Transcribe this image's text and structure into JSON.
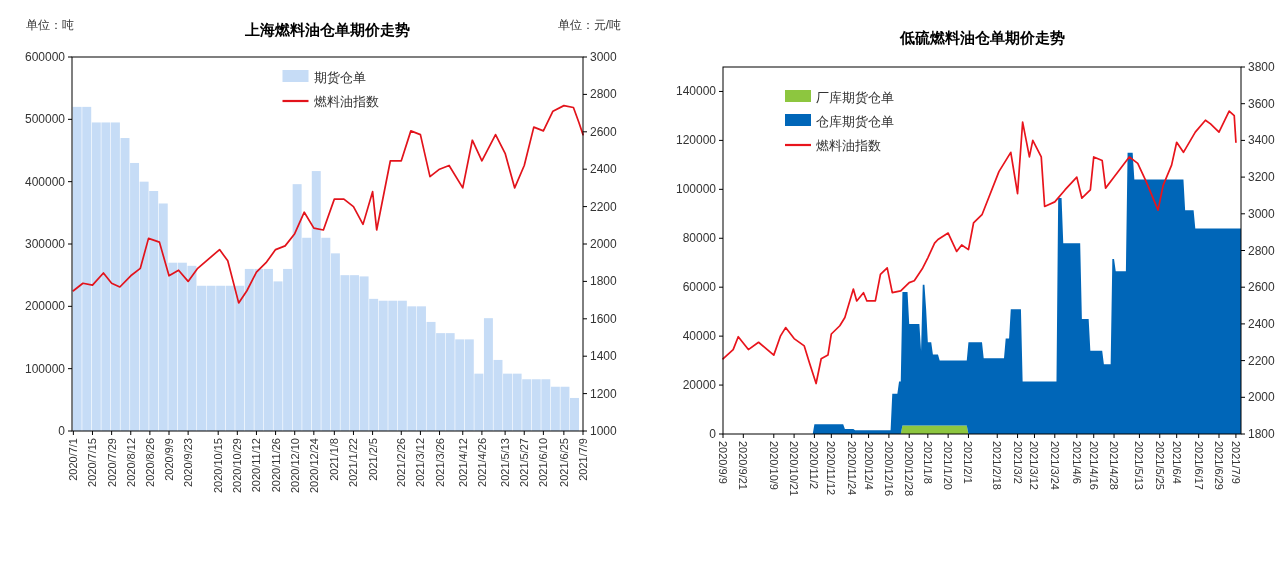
{
  "chart_data": [
    {
      "type": "bar",
      "title": "上海燃料油仓单期价走势",
      "ylabel": "单位：吨",
      "y2label": "单位：元/吨",
      "legend": "top",
      "xlim": [
        "2020-06-30",
        "2021-07-09"
      ],
      "xticks": [
        {
          "value": "2020-07-01",
          "label": "2020/7/1"
        },
        {
          "value": "2020-07-15",
          "label": "2020/7/15"
        },
        {
          "value": "2020-07-29",
          "label": "2020/7/29"
        },
        {
          "value": "2020-08-12",
          "label": "2020/8/12"
        },
        {
          "value": "2020-08-26",
          "label": "2020/8/26"
        },
        {
          "value": "2020-09-09",
          "label": "2020/9/9"
        },
        {
          "value": "2020-09-23",
          "label": "2020/9/23"
        },
        {
          "value": "2020-10-15",
          "label": "2020/10/15"
        },
        {
          "value": "2020-10-29",
          "label": "2020/10/29"
        },
        {
          "value": "2020-11-12",
          "label": "2020/11/12"
        },
        {
          "value": "2020-11-26",
          "label": "2020/11/26"
        },
        {
          "value": "2020-12-10",
          "label": "2020/12/10"
        },
        {
          "value": "2020-12-24",
          "label": "2020/12/24"
        },
        {
          "value": "2021-01-08",
          "label": "2021/1/8"
        },
        {
          "value": "2021-01-22",
          "label": "2021/1/22"
        },
        {
          "value": "2021-02-05",
          "label": "2021/2/5"
        },
        {
          "value": "2021-02-26",
          "label": "2021/2/26"
        },
        {
          "value": "2021-03-12",
          "label": "2021/3/12"
        },
        {
          "value": "2021-03-26",
          "label": "2021/3/26"
        },
        {
          "value": "2021-04-12",
          "label": "2021/4/12"
        },
        {
          "value": "2021-04-26",
          "label": "2021/4/26"
        },
        {
          "value": "2021-05-13",
          "label": "2021/5/13"
        },
        {
          "value": "2021-05-27",
          "label": "2021/5/27"
        },
        {
          "value": "2021-06-10",
          "label": "2021/6/10"
        },
        {
          "value": "2021-06-25",
          "label": "2021/6/25"
        },
        {
          "value": "2021-07-09",
          "label": "2021/7/9"
        }
      ],
      "ylim": [
        0,
        600000
      ],
      "yticks": [
        0,
        100000,
        200000,
        300000,
        400000,
        500000,
        600000
      ],
      "y2lim": [
        1000,
        3000
      ],
      "y2ticks": [
        1000,
        1200,
        1400,
        1600,
        1800,
        2000,
        2200,
        2400,
        2600,
        2800,
        3000
      ],
      "series": [
        {
          "name": "期货仓单",
          "color": "#c6dcf6",
          "x": [
            "2020-07-04",
            "2020-07-11",
            "2020-07-18",
            "2020-07-25",
            "2020-08-01",
            "2020-08-08",
            "2020-08-15",
            "2020-08-22",
            "2020-08-29",
            "2020-09-05",
            "2020-09-12",
            "2020-09-19",
            "2020-09-26",
            "2020-10-03",
            "2020-10-10",
            "2020-10-17",
            "2020-10-24",
            "2020-10-31",
            "2020-11-07",
            "2020-11-14",
            "2020-11-21",
            "2020-11-28",
            "2020-12-05",
            "2020-12-12",
            "2020-12-19",
            "2020-12-26",
            "2021-01-02",
            "2021-01-09",
            "2021-01-16",
            "2021-01-23",
            "2021-01-30",
            "2021-02-06",
            "2021-02-13",
            "2021-02-20",
            "2021-02-27",
            "2021-03-06",
            "2021-03-13",
            "2021-03-20",
            "2021-03-27",
            "2021-04-03",
            "2021-04-10",
            "2021-04-17",
            "2021-04-24",
            "2021-05-01",
            "2021-05-08",
            "2021-05-15",
            "2021-05-22",
            "2021-05-29",
            "2021-06-05",
            "2021-06-12",
            "2021-06-19",
            "2021-06-26",
            "2021-07-03"
          ],
          "values": [
            520000,
            520000,
            495000,
            495000,
            495000,
            470000,
            430000,
            400000,
            385000,
            365000,
            270000,
            270000,
            265000,
            233000,
            233000,
            233000,
            233000,
            233000,
            260000,
            260000,
            260000,
            240000,
            260000,
            396000,
            310000,
            417000,
            310000,
            285000,
            250000,
            250000,
            248000,
            212000,
            209000,
            209000,
            209000,
            200000,
            200000,
            175000,
            157000,
            157000,
            147000,
            147000,
            92000,
            181000,
            114000,
            92000,
            92000,
            83000,
            83000,
            83000,
            71000,
            71000,
            53000
          ]
        },
        {
          "name": "燃料油指数",
          "type": "line",
          "axis": "y2",
          "color": "#e2131b",
          "x": [
            "2020-07-01",
            "2020-07-08",
            "2020-07-15",
            "2020-07-23",
            "2020-07-29",
            "2020-08-04",
            "2020-08-12",
            "2020-08-19",
            "2020-08-25",
            "2020-09-02",
            "2020-09-09",
            "2020-09-16",
            "2020-09-23",
            "2020-09-30",
            "2020-10-16",
            "2020-10-22",
            "2020-10-30",
            "2020-11-05",
            "2020-11-12",
            "2020-11-19",
            "2020-11-26",
            "2020-12-03",
            "2020-12-10",
            "2020-12-17",
            "2020-12-24",
            "2020-12-31",
            "2021-01-08",
            "2021-01-15",
            "2021-01-22",
            "2021-01-29",
            "2021-02-05",
            "2021-02-08",
            "2021-02-18",
            "2021-02-26",
            "2021-03-05",
            "2021-03-12",
            "2021-03-19",
            "2021-03-26",
            "2021-04-02",
            "2021-04-12",
            "2021-04-19",
            "2021-04-26",
            "2021-05-06",
            "2021-05-13",
            "2021-05-20",
            "2021-05-27",
            "2021-06-03",
            "2021-06-10",
            "2021-06-17",
            "2021-06-25",
            "2021-07-02",
            "2021-07-06",
            "2021-07-09"
          ],
          "values": [
            1750,
            1790,
            1780,
            1845,
            1790,
            1770,
            1830,
            1870,
            2030,
            2010,
            1830,
            1860,
            1800,
            1870,
            1970,
            1910,
            1685,
            1750,
            1850,
            1900,
            1970,
            1990,
            2055,
            2170,
            2085,
            2075,
            2240,
            2240,
            2200,
            2105,
            2280,
            2075,
            2445,
            2445,
            2605,
            2585,
            2360,
            2400,
            2420,
            2300,
            2555,
            2445,
            2585,
            2485,
            2300,
            2420,
            2625,
            2605,
            2710,
            2740,
            2730,
            2650,
            2585
          ]
        }
      ]
    },
    {
      "type": "area",
      "title": "低硫燃料油仓单期价走势",
      "legend": "top left",
      "stacked": true,
      "xlim": [
        "2020-09-09",
        "2021-07-12"
      ],
      "xticks": [
        {
          "value": "2020-09-09",
          "label": "2020/9/9"
        },
        {
          "value": "2020-09-21",
          "label": "2020/9/21"
        },
        {
          "value": "2020-10-09",
          "label": "2020/10/9"
        },
        {
          "value": "2020-10-21",
          "label": "2020/10/21"
        },
        {
          "value": "2020-11-02",
          "label": "2020/11/2"
        },
        {
          "value": "2020-11-12",
          "label": "2020/11/12"
        },
        {
          "value": "2020-11-24",
          "label": "2020/11/24"
        },
        {
          "value": "2020-12-04",
          "label": "2020/12/4"
        },
        {
          "value": "2020-12-16",
          "label": "2020/12/16"
        },
        {
          "value": "2020-12-28",
          "label": "2020/12/28"
        },
        {
          "value": "2021-01-08",
          "label": "2021/1/8"
        },
        {
          "value": "2021-01-20",
          "label": "2021/1/20"
        },
        {
          "value": "2021-02-01",
          "label": "2021/2/1"
        },
        {
          "value": "2021-02-18",
          "label": "2021/2/18"
        },
        {
          "value": "2021-03-02",
          "label": "2021/3/2"
        },
        {
          "value": "2021-03-12",
          "label": "2021/3/12"
        },
        {
          "value": "2021-03-24",
          "label": "2021/3/24"
        },
        {
          "value": "2021-04-06",
          "label": "2021/4/6"
        },
        {
          "value": "2021-04-16",
          "label": "2021/4/16"
        },
        {
          "value": "2021-04-28",
          "label": "2021/4/28"
        },
        {
          "value": "2021-05-13",
          "label": "2021/5/13"
        },
        {
          "value": "2021-05-25",
          "label": "2021/5/25"
        },
        {
          "value": "2021-06-04",
          "label": "2021/6/4"
        },
        {
          "value": "2021-06-17",
          "label": "2021/6/17"
        },
        {
          "value": "2021-06-29",
          "label": "2021/6/29"
        },
        {
          "value": "2021-07-09",
          "label": "2021/7/9"
        }
      ],
      "ylim": [
        0,
        150000
      ],
      "yticks": [
        0,
        20000,
        40000,
        60000,
        80000,
        100000,
        120000,
        140000
      ],
      "y2lim": [
        1800,
        3800
      ],
      "y2ticks": [
        1800,
        2000,
        2200,
        2400,
        2600,
        2800,
        3000,
        3200,
        3400,
        3600,
        3800
      ],
      "x": [
        "2020-09-09",
        "2020-11-01",
        "2020-11-02",
        "2020-11-19",
        "2020-11-20",
        "2020-11-25",
        "2020-11-26",
        "2020-12-17",
        "2020-12-18",
        "2020-12-21",
        "2020-12-22",
        "2020-12-23",
        "2020-12-24",
        "2020-12-27",
        "2020-12-28",
        "2021-01-03",
        "2021-01-04",
        "2021-01-05",
        "2021-01-06",
        "2021-01-07",
        "2021-01-08",
        "2021-01-10",
        "2021-01-11",
        "2021-01-14",
        "2021-01-15",
        "2021-01-31",
        "2021-02-01",
        "2021-02-09",
        "2021-02-10",
        "2021-02-22",
        "2021-02-23",
        "2021-02-25",
        "2021-02-26",
        "2021-03-04",
        "2021-03-05",
        "2021-03-25",
        "2021-03-26",
        "2021-03-28",
        "2021-03-29",
        "2021-04-08",
        "2021-04-09",
        "2021-04-13",
        "2021-04-14",
        "2021-04-21",
        "2021-04-22",
        "2021-04-26",
        "2021-04-27",
        "2021-04-28",
        "2021-04-29",
        "2021-05-05",
        "2021-05-06",
        "2021-05-09",
        "2021-05-10",
        "2021-06-08",
        "2021-06-09",
        "2021-06-14",
        "2021-06-15",
        "2021-07-12"
      ],
      "series": [
        {
          "name": "厂库期货仓单",
          "color": "#8dc63f",
          "values": [
            0,
            0,
            0,
            0,
            0,
            0,
            0,
            0,
            0,
            0,
            0,
            0,
            3500,
            3500,
            3500,
            3500,
            3500,
            3500,
            3500,
            3500,
            3500,
            3500,
            3500,
            3500,
            3500,
            3500,
            0,
            0,
            0,
            0,
            0,
            0,
            0,
            0,
            0,
            0,
            0,
            0,
            0,
            0,
            0,
            0,
            0,
            0,
            0,
            0,
            0,
            0,
            0,
            0,
            0,
            0,
            0,
            0,
            0,
            0,
            0,
            0
          ]
        },
        {
          "name": "仓库期货仓单",
          "color": "#0066b8",
          "values": [
            0,
            0,
            4000,
            4000,
            2000,
            2000,
            1500,
            1500,
            16500,
            16500,
            21500,
            21500,
            54500,
            54500,
            41500,
            41500,
            30500,
            57500,
            57500,
            47500,
            34000,
            34000,
            29000,
            29000,
            26500,
            26500,
            37500,
            37500,
            31000,
            31000,
            39000,
            39000,
            51000,
            51000,
            21500,
            21500,
            96500,
            96500,
            78000,
            78000,
            47000,
            47000,
            34000,
            34000,
            28500,
            28500,
            71500,
            71500,
            66500,
            66500,
            115000,
            115000,
            104000,
            104000,
            91500,
            91500,
            84000,
            84000
          ]
        },
        {
          "name": "燃料油指数",
          "type": "line",
          "axis": "y2",
          "color": "#e8141c",
          "x": [
            "2020-09-09",
            "2020-09-15",
            "2020-09-18",
            "2020-09-24",
            "2020-09-30",
            "2020-10-09",
            "2020-10-13",
            "2020-10-16",
            "2020-10-21",
            "2020-10-27",
            "2020-10-30",
            "2020-11-03",
            "2020-11-06",
            "2020-11-10",
            "2020-11-12",
            "2020-11-17",
            "2020-11-20",
            "2020-11-25",
            "2020-11-27",
            "2020-12-01",
            "2020-12-03",
            "2020-12-08",
            "2020-12-11",
            "2020-12-15",
            "2020-12-18",
            "2020-12-23",
            "2020-12-28",
            "2020-12-31",
            "2021-01-05",
            "2021-01-08",
            "2021-01-12",
            "2021-01-14",
            "2021-01-20",
            "2021-01-25",
            "2021-01-28",
            "2021-02-01",
            "2021-02-04",
            "2021-02-09",
            "2021-02-19",
            "2021-02-23",
            "2021-02-26",
            "2021-03-02",
            "2021-03-05",
            "2021-03-09",
            "2021-03-11",
            "2021-03-16",
            "2021-03-18",
            "2021-03-24",
            "2021-03-30",
            "2021-04-06",
            "2021-04-09",
            "2021-04-14",
            "2021-04-16",
            "2021-04-21",
            "2021-04-23",
            "2021-04-28",
            "2021-05-07",
            "2021-05-12",
            "2021-05-17",
            "2021-05-24",
            "2021-05-27",
            "2021-06-01",
            "2021-06-04",
            "2021-06-08",
            "2021-06-15",
            "2021-06-21",
            "2021-06-24",
            "2021-06-29",
            "2021-07-05",
            "2021-07-08",
            "2021-07-09"
          ],
          "values": [
            2210,
            2260,
            2330,
            2260,
            2300,
            2230,
            2335,
            2380,
            2320,
            2280,
            2190,
            2075,
            2210,
            2230,
            2345,
            2390,
            2435,
            2590,
            2525,
            2570,
            2525,
            2525,
            2670,
            2705,
            2570,
            2580,
            2625,
            2635,
            2705,
            2760,
            2840,
            2860,
            2895,
            2795,
            2830,
            2805,
            2950,
            2995,
            3230,
            3290,
            3335,
            3110,
            3500,
            3310,
            3400,
            3310,
            3040,
            3065,
            3130,
            3200,
            3085,
            3130,
            3310,
            3290,
            3140,
            3200,
            3310,
            3275,
            3175,
            3020,
            3155,
            3265,
            3390,
            3335,
            3445,
            3510,
            3490,
            3445,
            3560,
            3535,
            3390
          ]
        }
      ]
    }
  ]
}
